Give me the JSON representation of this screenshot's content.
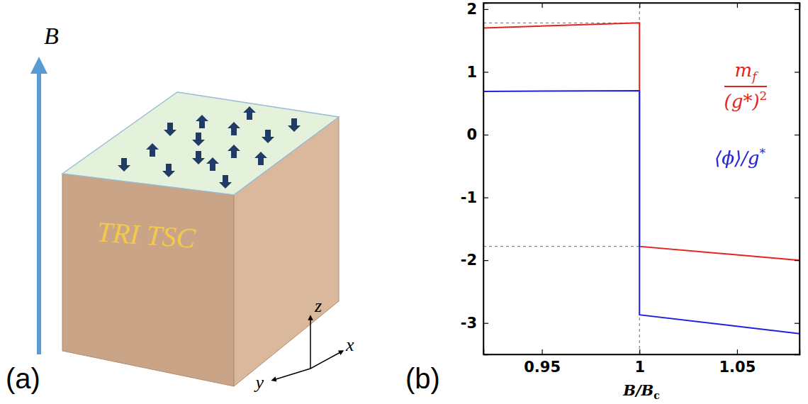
{
  "diagram": {
    "panel_label": "(a)",
    "field_label": "B",
    "material_label": "TRI TSC",
    "axes": {
      "z": "z",
      "y": "y",
      "x": "x"
    }
  },
  "chart_data": {
    "type": "line",
    "panel_label": "(b)",
    "xlabel": {
      "text": "B/B",
      "subscript": "c"
    },
    "xlim": [
      0.92,
      1.082
    ],
    "xticks": [
      0.95,
      1,
      1.05
    ],
    "ylim": [
      -3.5,
      2.1
    ],
    "yticks": [
      -3,
      -2,
      -1,
      0,
      1,
      2
    ],
    "reference_lines": {
      "y": [
        1.78,
        -1.78
      ],
      "x": [
        1
      ]
    },
    "series": [
      {
        "label": {
          "numerator": "m",
          "numerator_subscript": "f",
          "denominator": "(g*)",
          "denominator_superscript": "2"
        },
        "color": "#e3241c",
        "line_style": "solid",
        "x": [
          0.92,
          1,
          1,
          1.082
        ],
        "values": [
          1.7,
          1.78,
          -1.78,
          -2.0
        ]
      },
      {
        "label": {
          "text": "⟨ϕ⟩/g",
          "superscript": "*"
        },
        "color": "#2121d8",
        "line_style": "solid",
        "x": [
          0.92,
          1,
          1,
          1.082
        ],
        "values": [
          0.69,
          0.7,
          -2.87,
          -3.17
        ]
      }
    ]
  }
}
